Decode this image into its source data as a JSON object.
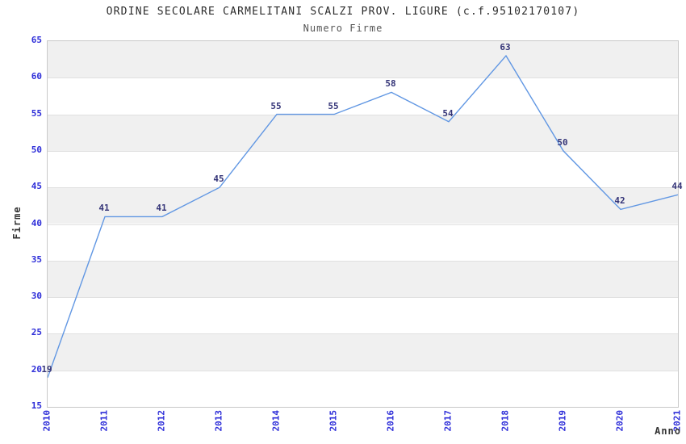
{
  "chart_data": {
    "type": "line",
    "title": "ORDINE SECOLARE CARMELITANI SCALZI PROV. LIGURE (c.f.95102170107)",
    "subtitle": "Numero Firme",
    "xlabel": "Anno",
    "ylabel": "Firme",
    "categories": [
      "2010",
      "2011",
      "2012",
      "2013",
      "2014",
      "2015",
      "2016",
      "2017",
      "2018",
      "2019",
      "2020",
      "2021"
    ],
    "values": [
      19,
      41,
      41,
      45,
      55,
      55,
      58,
      54,
      63,
      50,
      42,
      44
    ],
    "ylim": [
      15,
      65
    ],
    "ytick_step": 5,
    "grid": "horizontal-bands",
    "legend_position": "none",
    "colors": {
      "line": "#6197e3",
      "tick_text": "#2d2dd8",
      "point_label_text": "#333377",
      "band_fill": "#f0f0f0",
      "band_alt_fill": "#ffffff",
      "grid_line": "#e0e0e0",
      "plot_border": "#c9c9c9",
      "title_text": "#2b2b2b",
      "subtitle_text": "#555555",
      "axis_label_text": "#333333"
    }
  }
}
